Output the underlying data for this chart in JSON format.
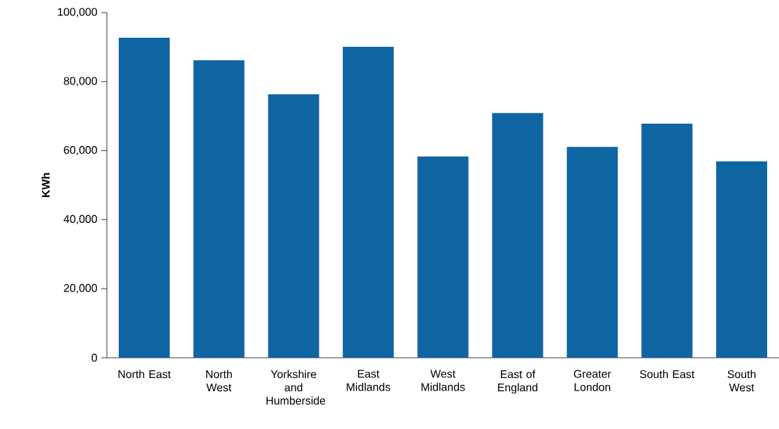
{
  "chart_data": {
    "type": "bar",
    "ylabel": "KWh",
    "categories": [
      "North East",
      "North West",
      "Yorkshire and Humberside",
      "East Midlands",
      "West Midlands",
      "East of England",
      "Greater London",
      "South East",
      "South West"
    ],
    "values": [
      92700,
      86200,
      76300,
      90100,
      58300,
      70900,
      61100,
      67800,
      56900
    ],
    "color": "#1065a3",
    "ylim": [
      0,
      100000
    ],
    "yticks": [
      {
        "value": 0,
        "label": "0"
      },
      {
        "value": 20000,
        "label": "20,000"
      },
      {
        "value": 40000,
        "label": "40,000"
      },
      {
        "value": 60000,
        "label": "60,000"
      },
      {
        "value": 80000,
        "label": "80,000"
      },
      {
        "value": 100000,
        "label": "100,000"
      }
    ]
  }
}
